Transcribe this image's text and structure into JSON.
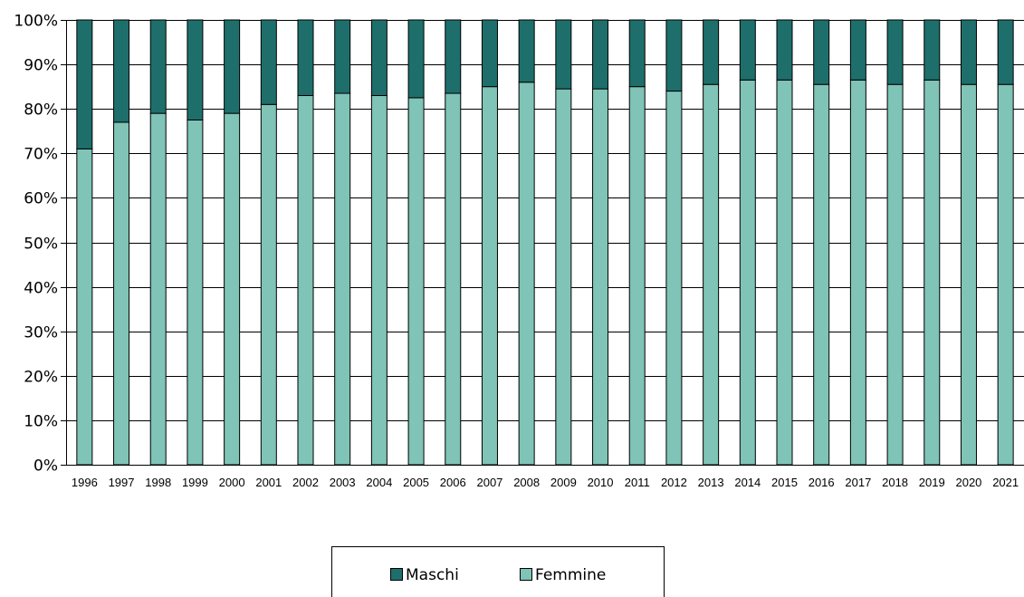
{
  "chart_data": {
    "type": "bar",
    "stacked": true,
    "percent": true,
    "categories": [
      "1996",
      "1997",
      "1998",
      "1999",
      "2000",
      "2001",
      "2002",
      "2003",
      "2004",
      "2005",
      "2006",
      "2007",
      "2008",
      "2009",
      "2010",
      "2011",
      "2012",
      "2013",
      "2014",
      "2015",
      "2016",
      "2017",
      "2018",
      "2019",
      "2020",
      "2021"
    ],
    "series": [
      {
        "name": "Femmine",
        "color": "#7fc4b6",
        "values": [
          71,
          77,
          79,
          77.5,
          79,
          81,
          83,
          83.5,
          83,
          82.5,
          83.5,
          85,
          86,
          84.5,
          84.5,
          85,
          84,
          85.5,
          86.5,
          86.5,
          85.5,
          86.5,
          85.5,
          86.5,
          85.5,
          85.5
        ]
      },
      {
        "name": "Maschi",
        "color": "#1e6f6b",
        "values": [
          29,
          23,
          21,
          22.5,
          21,
          19,
          17,
          16.5,
          17,
          17.5,
          16.5,
          15,
          14,
          15.5,
          15.5,
          15,
          16,
          14.5,
          13.5,
          13.5,
          14.5,
          13.5,
          14.5,
          13.5,
          14.5,
          14.5
        ]
      }
    ],
    "ylim": [
      0,
      100
    ],
    "yticks": [
      "0%",
      "10%",
      "20%",
      "30%",
      "40%",
      "50%",
      "60%",
      "70%",
      "80%",
      "90%",
      "100%"
    ],
    "grid": true,
    "legend": {
      "position": "bottom",
      "entries": [
        "Maschi",
        "Femmine"
      ]
    }
  }
}
